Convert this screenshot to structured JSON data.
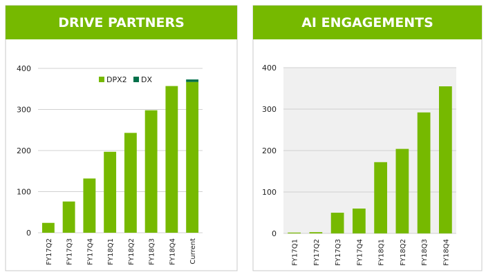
{
  "chart_data": [
    {
      "type": "bar",
      "title": "DRIVE PARTNERS",
      "stacked": true,
      "categories": [
        "FY17Q2",
        "FY17Q3",
        "FY17Q4",
        "FY18Q1",
        "FY18Q2",
        "FY18Q3",
        "FY18Q4",
        "Current"
      ],
      "series": [
        {
          "name": "DPX2",
          "color": "#76b900",
          "values": [
            24,
            76,
            132,
            197,
            243,
            298,
            357,
            367
          ]
        },
        {
          "name": "DX",
          "color": "#00704a",
          "values": [
            null,
            null,
            null,
            null,
            null,
            null,
            null,
            6
          ]
        }
      ],
      "ylim": [
        0,
        400
      ],
      "yticks": [
        0,
        100,
        200,
        300,
        400
      ],
      "grid": true,
      "legend": "top-right",
      "plot_background": "#ffffff"
    },
    {
      "type": "bar",
      "title": "AI ENGAGEMENTS",
      "categories": [
        "FY17Q1",
        "FY17Q2",
        "FY17Q3",
        "FY17Q4",
        "FY18Q1",
        "FY18Q2",
        "FY18Q3",
        "FY18Q4"
      ],
      "series": [
        {
          "name": "AI",
          "color": "#76b900",
          "values": [
            2,
            3,
            50,
            60,
            172,
            204,
            292,
            355
          ]
        }
      ],
      "ylim": [
        0,
        400
      ],
      "yticks": [
        0,
        100,
        200,
        300,
        400
      ],
      "grid": true,
      "plot_background": "#f0f0f0"
    }
  ]
}
